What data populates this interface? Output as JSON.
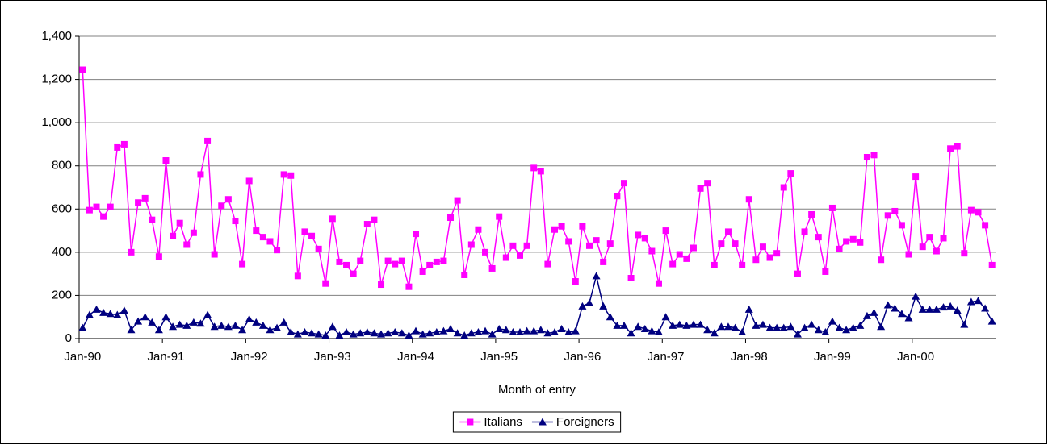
{
  "chart_data": {
    "type": "line",
    "x_label": "Month of entry",
    "categories": [
      "Jan-90",
      null,
      null,
      null,
      null,
      null,
      null,
      null,
      null,
      null,
      null,
      null,
      "Jan-91",
      null,
      null,
      null,
      null,
      null,
      null,
      null,
      null,
      null,
      null,
      null,
      "Jan-92",
      null,
      null,
      null,
      null,
      null,
      null,
      null,
      null,
      null,
      null,
      null,
      "Jan-93",
      null,
      null,
      null,
      null,
      null,
      null,
      null,
      null,
      null,
      null,
      null,
      "Jan-94",
      null,
      null,
      null,
      null,
      null,
      null,
      null,
      null,
      null,
      null,
      null,
      "Jan-95",
      null,
      null,
      null,
      null,
      null,
      null,
      null,
      null,
      null,
      null,
      null,
      "Jan-96",
      null,
      null,
      null,
      null,
      null,
      null,
      null,
      null,
      null,
      null,
      null,
      "Jan-97",
      null,
      null,
      null,
      null,
      null,
      null,
      null,
      null,
      null,
      null,
      null,
      "Jan-98",
      null,
      null,
      null,
      null,
      null,
      null,
      null,
      null,
      null,
      null,
      null,
      "Jan-99",
      null,
      null,
      null,
      null,
      null,
      null,
      null,
      null,
      null,
      null,
      null,
      "Jan-00",
      null,
      null,
      null,
      null,
      null,
      null,
      null,
      null,
      null,
      null,
      null
    ],
    "series": [
      {
        "name": "Italians",
        "color": "#ff00ff",
        "marker": "square",
        "values": [
          1245,
          595,
          610,
          565,
          610,
          885,
          900,
          400,
          630,
          650,
          550,
          380,
          825,
          475,
          535,
          435,
          490,
          760,
          915,
          390,
          615,
          645,
          545,
          345,
          730,
          500,
          470,
          450,
          410,
          760,
          755,
          290,
          495,
          475,
          415,
          255,
          555,
          355,
          340,
          300,
          360,
          530,
          550,
          250,
          360,
          345,
          360,
          240,
          485,
          310,
          340,
          355,
          360,
          560,
          640,
          295,
          435,
          505,
          400,
          325,
          565,
          375,
          430,
          385,
          430,
          790,
          775,
          345,
          505,
          520,
          450,
          265,
          520,
          430,
          455,
          355,
          440,
          660,
          720,
          280,
          480,
          465,
          405,
          255,
          500,
          345,
          390,
          370,
          420,
          695,
          720,
          340,
          440,
          495,
          440,
          340,
          645,
          365,
          425,
          375,
          395,
          700,
          765,
          300,
          495,
          575,
          470,
          310,
          605,
          415,
          450,
          460,
          445,
          840,
          850,
          365,
          570,
          590,
          525,
          390,
          750,
          425,
          470,
          405,
          465,
          880,
          890,
          395,
          595,
          585,
          525,
          340
        ]
      },
      {
        "name": "Foreigners",
        "color": "#000080",
        "marker": "triangle",
        "values": [
          50,
          110,
          135,
          120,
          115,
          110,
          130,
          40,
          80,
          100,
          75,
          40,
          100,
          55,
          65,
          60,
          75,
          70,
          110,
          55,
          60,
          55,
          60,
          40,
          90,
          75,
          60,
          40,
          50,
          75,
          30,
          20,
          30,
          25,
          20,
          15,
          55,
          15,
          30,
          20,
          25,
          30,
          25,
          20,
          25,
          30,
          25,
          15,
          35,
          20,
          25,
          30,
          35,
          45,
          25,
          15,
          25,
          30,
          35,
          20,
          45,
          40,
          30,
          30,
          35,
          35,
          40,
          25,
          30,
          45,
          30,
          35,
          150,
          165,
          290,
          150,
          100,
          60,
          60,
          25,
          55,
          45,
          35,
          30,
          100,
          60,
          65,
          60,
          65,
          65,
          40,
          25,
          55,
          55,
          50,
          30,
          135,
          60,
          65,
          50,
          50,
          50,
          55,
          20,
          50,
          65,
          40,
          30,
          80,
          50,
          40,
          50,
          60,
          105,
          120,
          55,
          155,
          140,
          115,
          95,
          195,
          135,
          135,
          135,
          145,
          150,
          130,
          65,
          170,
          175,
          140,
          80
        ]
      }
    ],
    "ylim": [
      0,
      1400
    ],
    "yticks": [
      0,
      200,
      400,
      600,
      800,
      {
        "value": 1000,
        "label": "1,000"
      },
      {
        "value": 1200,
        "label": "1,200"
      },
      {
        "value": 1400,
        "label": "1,400"
      }
    ],
    "grid": true,
    "legend": "bottom"
  }
}
